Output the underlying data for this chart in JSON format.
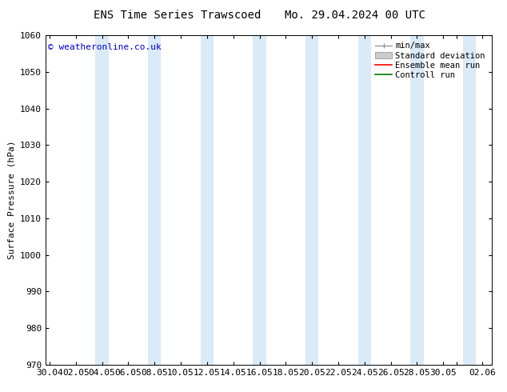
{
  "title_left": "ENS Time Series Trawscoed",
  "title_right": "Mo. 29.04.2024 00 UTC",
  "ylabel": "Surface Pressure (hPa)",
  "ylim": [
    970,
    1060
  ],
  "yticks": [
    970,
    980,
    990,
    1000,
    1010,
    1020,
    1030,
    1040,
    1050,
    1060
  ],
  "xtick_labels": [
    "30.04",
    "02.05",
    "04.05",
    "06.05",
    "08.05",
    "10.05",
    "12.05",
    "14.05",
    "16.05",
    "18.05",
    "20.05",
    "22.05",
    "24.05",
    "26.05",
    "28.05",
    "30.05",
    "",
    "02.06"
  ],
  "xtick_positions": [
    0,
    2,
    4,
    6,
    8,
    10,
    12,
    14,
    16,
    18,
    20,
    22,
    24,
    26,
    28,
    30,
    31,
    33
  ],
  "xlim": [
    -0.3,
    33.7
  ],
  "copyright_text": "© weatheronline.co.uk",
  "legend_items": [
    "min/max",
    "Standard deviation",
    "Ensemble mean run",
    "Controll run"
  ],
  "band_color": "#daeaf6",
  "background_color": "#ffffff",
  "ensemble_mean_color": "#ff0000",
  "control_run_color": "#007700",
  "title_fontsize": 10,
  "tick_fontsize": 8,
  "ylabel_fontsize": 8,
  "legend_fontsize": 7.5,
  "copyright_color": "#0000cc"
}
